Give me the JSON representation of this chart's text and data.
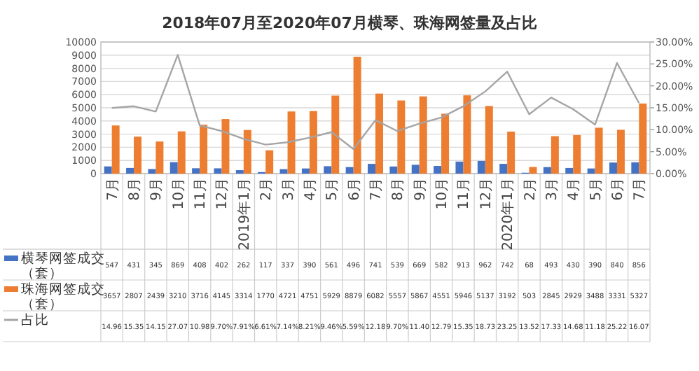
{
  "chart_data": {
    "type": "bar",
    "title": "2018年07月至2020年07月横琴、珠海网签量及占比",
    "categories": [
      "7月",
      "8月",
      "9月",
      "10月",
      "11月",
      "12月",
      "2019年1月",
      "2月",
      "3月",
      "4月",
      "5月",
      "6月",
      "7月",
      "8月",
      "9月",
      "10月",
      "11月",
      "12月",
      "2020年1月",
      "2月",
      "3月",
      "4月",
      "5月",
      "6月",
      "7月"
    ],
    "series": [
      {
        "name": "横琴网签成交（套）",
        "color": "#4472c4",
        "values": [
          547,
          431,
          345,
          869,
          408,
          402,
          262,
          117,
          337,
          390,
          561,
          496,
          741,
          539,
          669,
          582,
          913,
          962,
          742,
          68,
          493,
          430,
          390,
          840,
          856
        ],
        "value_labels": [
          "547",
          "431",
          "345",
          "869",
          "408",
          "402",
          "262",
          "117",
          "337",
          "390",
          "561",
          "496",
          "741",
          "539",
          "669",
          "582",
          "913",
          "962",
          "742",
          "68",
          "493",
          "430",
          "390",
          "840",
          "856"
        ]
      },
      {
        "name": "珠海网签成交（套）",
        "color": "#ed7d31",
        "values": [
          3657,
          2807,
          2439,
          3210,
          3716,
          4145,
          3314,
          1770,
          4721,
          4751,
          5929,
          8879,
          6082,
          5557,
          5867,
          4551,
          5946,
          5137,
          3192,
          503,
          2845,
          2929,
          3488,
          3331,
          5327
        ],
        "value_labels": [
          "3657",
          "2807",
          "2439",
          "3210",
          "3716",
          "4145",
          "3314",
          "1770",
          "4721",
          "4751",
          "5929",
          "8879",
          "6082",
          "5557",
          "5867",
          "4551",
          "5946",
          "5137",
          "3192",
          "503",
          "2845",
          "2929",
          "3488",
          "3331",
          "5327"
        ]
      },
      {
        "name": "占比",
        "type": "line",
        "axis": "y2",
        "color": "#a5a5a5",
        "values": [
          14.96,
          15.35,
          14.15,
          27.07,
          10.98,
          9.7,
          7.91,
          6.61,
          7.14,
          8.21,
          9.46,
          5.59,
          12.18,
          9.7,
          11.4,
          12.79,
          15.35,
          18.73,
          23.25,
          13.52,
          17.33,
          14.68,
          11.18,
          25.22,
          16.07
        ],
        "value_labels": [
          "14.96",
          "15.35",
          "14.15",
          "27.07",
          "10.98",
          "9.70%",
          "7.91%",
          "6.61%",
          "7.14%",
          "8.21%",
          "9.46%",
          "5.59%",
          "12.18",
          "9.70%",
          "11.40",
          "12.79",
          "15.35",
          "18.73",
          "23.25",
          "13.52",
          "17.33",
          "14.68",
          "11.18",
          "25.22",
          "16.07"
        ]
      }
    ],
    "ylim": [
      0,
      10000
    ],
    "yticks": [
      0,
      1000,
      2000,
      3000,
      4000,
      5000,
      6000,
      7000,
      8000,
      9000,
      10000
    ],
    "y2lim": [
      0,
      30
    ],
    "y2ticks": [
      {
        "value": 0,
        "label": "0.00%"
      },
      {
        "value": 5,
        "label": "5.00%"
      },
      {
        "value": 10,
        "label": "10.00%"
      },
      {
        "value": 15,
        "label": "15.00%"
      },
      {
        "value": 20,
        "label": "20.00%"
      },
      {
        "value": 25,
        "label": "25.00%"
      },
      {
        "value": 30,
        "label": "30.00%"
      }
    ],
    "grid": "y",
    "legend": "bottom left"
  }
}
